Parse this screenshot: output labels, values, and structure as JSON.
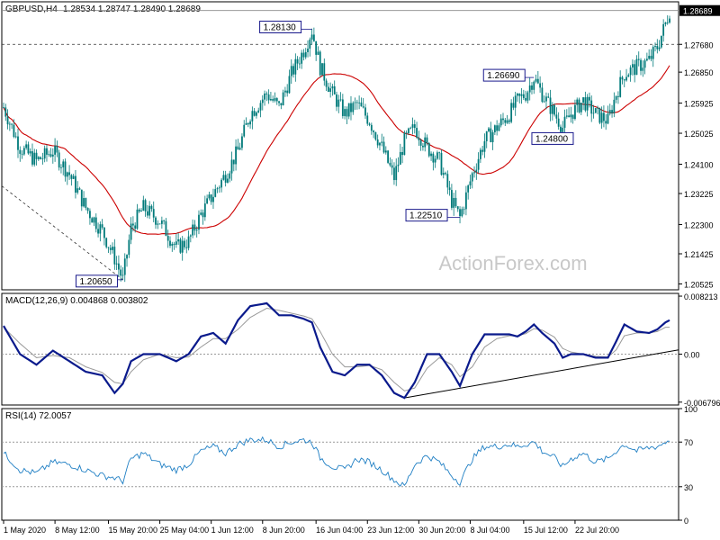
{
  "header": {
    "symbol": "GBPUSD,H4",
    "ohlc": "1.28534 1.28747 1.28490 1.28689"
  },
  "watermark": "ActionForex.com",
  "colors": {
    "candle": "#007a7a",
    "ma": "#cc0000",
    "macd": "#0a1a8c",
    "signal": "#9a9a9a",
    "rsi": "#1f7fc4",
    "label_border": "#1a1a8c",
    "price_tag_bg": "#000000"
  },
  "chart_data": [
    {
      "type": "candlestick",
      "title": "GBPUSD,H4",
      "y_ticks": [
        "1.28689",
        "1.27680",
        "1.26850",
        "1.25925",
        "1.25025",
        "1.24100",
        "1.23225",
        "1.22300",
        "1.21425",
        "1.20525"
      ],
      "ylim": [
        1.2035,
        1.2895
      ],
      "current_price": "1.28689",
      "level_price": "1.27680",
      "annotations": [
        {
          "text": "1.28130",
          "value": 1.2813
        },
        {
          "text": "1.20650",
          "value": 1.2065
        },
        {
          "text": "1.26690",
          "value": 1.2669
        },
        {
          "text": "1.24800",
          "value": 1.248
        },
        {
          "text": "1.22510",
          "value": 1.2251
        }
      ],
      "anchors": [
        [
          0,
          1.258
        ],
        [
          8,
          1.246
        ],
        [
          16,
          1.242
        ],
        [
          24,
          1.245
        ],
        [
          32,
          1.238
        ],
        [
          40,
          1.228
        ],
        [
          48,
          1.221
        ],
        [
          54,
          1.213
        ],
        [
          58,
          1.2065
        ],
        [
          62,
          1.222
        ],
        [
          68,
          1.228
        ],
        [
          76,
          1.224
        ],
        [
          84,
          1.216
        ],
        [
          90,
          1.218
        ],
        [
          96,
          1.226
        ],
        [
          102,
          1.232
        ],
        [
          108,
          1.238
        ],
        [
          114,
          1.245
        ],
        [
          120,
          1.256
        ],
        [
          128,
          1.262
        ],
        [
          134,
          1.258
        ],
        [
          140,
          1.268
        ],
        [
          146,
          1.275
        ],
        [
          150,
          1.281
        ],
        [
          154,
          1.27
        ],
        [
          160,
          1.262
        ],
        [
          166,
          1.256
        ],
        [
          172,
          1.259
        ],
        [
          178,
          1.254
        ],
        [
          184,
          1.246
        ],
        [
          190,
          1.237
        ],
        [
          195,
          1.248
        ],
        [
          200,
          1.252
        ],
        [
          206,
          1.246
        ],
        [
          212,
          1.242
        ],
        [
          218,
          1.23
        ],
        [
          222,
          1.2251
        ],
        [
          228,
          1.238
        ],
        [
          234,
          1.248
        ],
        [
          240,
          1.252
        ],
        [
          246,
          1.256
        ],
        [
          250,
          1.26
        ],
        [
          254,
          1.262
        ],
        [
          258,
          1.2669
        ],
        [
          262,
          1.262
        ],
        [
          268,
          1.256
        ],
        [
          272,
          1.252
        ],
        [
          276,
          1.256
        ],
        [
          282,
          1.26
        ],
        [
          288,
          1.256
        ],
        [
          294,
          1.254
        ],
        [
          298,
          1.262
        ],
        [
          302,
          1.268
        ],
        [
          308,
          1.27
        ],
        [
          314,
          1.272
        ],
        [
          318,
          1.276
        ],
        [
          322,
          1.2829
        ],
        [
          324,
          1.2869
        ]
      ]
    },
    {
      "type": "line",
      "title": "MACD(12,26,9) 0.004868 0.003802",
      "y_ticks": [
        "0.008213",
        "0.00",
        "-0.006796"
      ],
      "ylim": [
        -0.0072,
        0.0086
      ],
      "series": [
        {
          "name": "MACD",
          "anchors": [
            [
              0,
              0.004
            ],
            [
              8,
              0.0
            ],
            [
              16,
              -0.0015
            ],
            [
              24,
              0.0005
            ],
            [
              32,
              -0.001
            ],
            [
              40,
              -0.0025
            ],
            [
              48,
              -0.003
            ],
            [
              54,
              -0.0055
            ],
            [
              58,
              -0.0042
            ],
            [
              62,
              -0.001
            ],
            [
              68,
              0.0
            ],
            [
              76,
              0.0
            ],
            [
              84,
              -0.001
            ],
            [
              90,
              0.0
            ],
            [
              96,
              0.0025
            ],
            [
              102,
              0.003
            ],
            [
              108,
              0.0015
            ],
            [
              114,
              0.0048
            ],
            [
              120,
              0.0068
            ],
            [
              128,
              0.0072
            ],
            [
              134,
              0.0055
            ],
            [
              140,
              0.0055
            ],
            [
              146,
              0.005
            ],
            [
              150,
              0.0045
            ],
            [
              154,
              0.001
            ],
            [
              160,
              -0.0025
            ],
            [
              166,
              -0.003
            ],
            [
              172,
              -0.0015
            ],
            [
              178,
              -0.0015
            ],
            [
              184,
              -0.003
            ],
            [
              190,
              -0.0055
            ],
            [
              195,
              -0.0062
            ],
            [
              200,
              -0.004
            ],
            [
              206,
              0.0
            ],
            [
              212,
              0.0
            ],
            [
              218,
              -0.0025
            ],
            [
              222,
              -0.0045
            ],
            [
              228,
              0.0
            ],
            [
              234,
              0.0028
            ],
            [
              240,
              0.0028
            ],
            [
              246,
              0.0028
            ],
            [
              250,
              0.0025
            ],
            [
              254,
              0.0032
            ],
            [
              258,
              0.0042
            ],
            [
              262,
              0.003
            ],
            [
              268,
              0.0015
            ],
            [
              272,
              -0.0005
            ],
            [
              276,
              0.0
            ],
            [
              282,
              0.0
            ],
            [
              288,
              -0.0005
            ],
            [
              294,
              -0.0005
            ],
            [
              298,
              0.0018
            ],
            [
              302,
              0.0042
            ],
            [
              308,
              0.0032
            ],
            [
              314,
              0.003
            ],
            [
              318,
              0.0035
            ],
            [
              322,
              0.0045
            ],
            [
              324,
              0.0048
            ]
          ]
        },
        {
          "name": "Signal",
          "anchors": [
            [
              0,
              0.0038
            ],
            [
              8,
              0.0015
            ],
            [
              16,
              -0.0005
            ],
            [
              24,
              -0.0002
            ],
            [
              32,
              -0.0005
            ],
            [
              40,
              -0.0018
            ],
            [
              48,
              -0.0026
            ],
            [
              54,
              -0.004
            ],
            [
              58,
              -0.0042
            ],
            [
              62,
              -0.0025
            ],
            [
              68,
              -0.0008
            ],
            [
              76,
              0.0
            ],
            [
              84,
              -0.0005
            ],
            [
              90,
              -0.0004
            ],
            [
              96,
              0.001
            ],
            [
              102,
              0.0022
            ],
            [
              108,
              0.0022
            ],
            [
              114,
              0.0035
            ],
            [
              120,
              0.0052
            ],
            [
              128,
              0.0065
            ],
            [
              134,
              0.0062
            ],
            [
              140,
              0.0058
            ],
            [
              146,
              0.0054
            ],
            [
              150,
              0.005
            ],
            [
              154,
              0.0032
            ],
            [
              160,
              0.0
            ],
            [
              166,
              -0.0018
            ],
            [
              172,
              -0.0018
            ],
            [
              178,
              -0.0016
            ],
            [
              184,
              -0.0022
            ],
            [
              190,
              -0.004
            ],
            [
              195,
              -0.0052
            ],
            [
              200,
              -0.0048
            ],
            [
              206,
              -0.002
            ],
            [
              212,
              -0.0005
            ],
            [
              218,
              -0.0015
            ],
            [
              222,
              -0.0032
            ],
            [
              228,
              -0.0018
            ],
            [
              234,
              0.001
            ],
            [
              240,
              0.0022
            ],
            [
              246,
              0.0026
            ],
            [
              250,
              0.0026
            ],
            [
              254,
              0.0029
            ],
            [
              258,
              0.0036
            ],
            [
              262,
              0.0034
            ],
            [
              268,
              0.0024
            ],
            [
              272,
              0.0008
            ],
            [
              276,
              0.0003
            ],
            [
              282,
              0.0
            ],
            [
              288,
              -0.0003
            ],
            [
              294,
              -0.0004
            ],
            [
              298,
              0.0006
            ],
            [
              302,
              0.0026
            ],
            [
              308,
              0.003
            ],
            [
              314,
              0.003
            ],
            [
              318,
              0.0032
            ],
            [
              322,
              0.0038
            ],
            [
              324,
              0.0038
            ]
          ]
        }
      ]
    },
    {
      "type": "line",
      "title": "RSI(14) 72.0057",
      "y_ticks": [
        "100",
        "70",
        "30",
        "0"
      ],
      "ylim": [
        0,
        100
      ],
      "series": [
        {
          "name": "RSI",
          "anchors": [
            [
              0,
              60
            ],
            [
              8,
              45
            ],
            [
              16,
              42
            ],
            [
              24,
              52
            ],
            [
              32,
              50
            ],
            [
              40,
              45
            ],
            [
              48,
              40
            ],
            [
              54,
              38
            ],
            [
              58,
              35
            ],
            [
              62,
              55
            ],
            [
              68,
              60
            ],
            [
              76,
              50
            ],
            [
              84,
              45
            ],
            [
              90,
              50
            ],
            [
              96,
              62
            ],
            [
              102,
              66
            ],
            [
              108,
              60
            ],
            [
              114,
              68
            ],
            [
              120,
              72
            ],
            [
              128,
              72
            ],
            [
              134,
              66
            ],
            [
              140,
              70
            ],
            [
              146,
              72
            ],
            [
              150,
              70
            ],
            [
              154,
              56
            ],
            [
              160,
              48
            ],
            [
              166,
              45
            ],
            [
              172,
              55
            ],
            [
              178,
              52
            ],
            [
              184,
              45
            ],
            [
              190,
              36
            ],
            [
              195,
              30
            ],
            [
              200,
              50
            ],
            [
              206,
              58
            ],
            [
              212,
              52
            ],
            [
              218,
              40
            ],
            [
              222,
              34
            ],
            [
              228,
              55
            ],
            [
              234,
              66
            ],
            [
              240,
              66
            ],
            [
              246,
              68
            ],
            [
              250,
              66
            ],
            [
              254,
              68
            ],
            [
              258,
              70
            ],
            [
              262,
              62
            ],
            [
              268,
              56
            ],
            [
              272,
              48
            ],
            [
              276,
              55
            ],
            [
              282,
              60
            ],
            [
              288,
              52
            ],
            [
              294,
              55
            ],
            [
              298,
              62
            ],
            [
              302,
              68
            ],
            [
              308,
              62
            ],
            [
              314,
              65
            ],
            [
              318,
              66
            ],
            [
              322,
              70
            ],
            [
              324,
              72
            ]
          ]
        }
      ]
    }
  ],
  "x_axis": {
    "tick_labels": [
      "1 May 2020",
      "8 May 12:00",
      "15 May 20:00",
      "25 May 04:00",
      "1 Jun 12:00",
      "8 Jun 20:00",
      "16 Jun 04:00",
      "23 Jun 12:00",
      "30 Jun 20:00",
      "8 Jul 04:00",
      "15 Jul 12:00",
      "22 Jul 20:00"
    ],
    "tick_index": [
      0,
      25,
      51,
      76,
      101,
      126,
      152,
      177,
      202,
      227,
      253,
      278
    ]
  }
}
